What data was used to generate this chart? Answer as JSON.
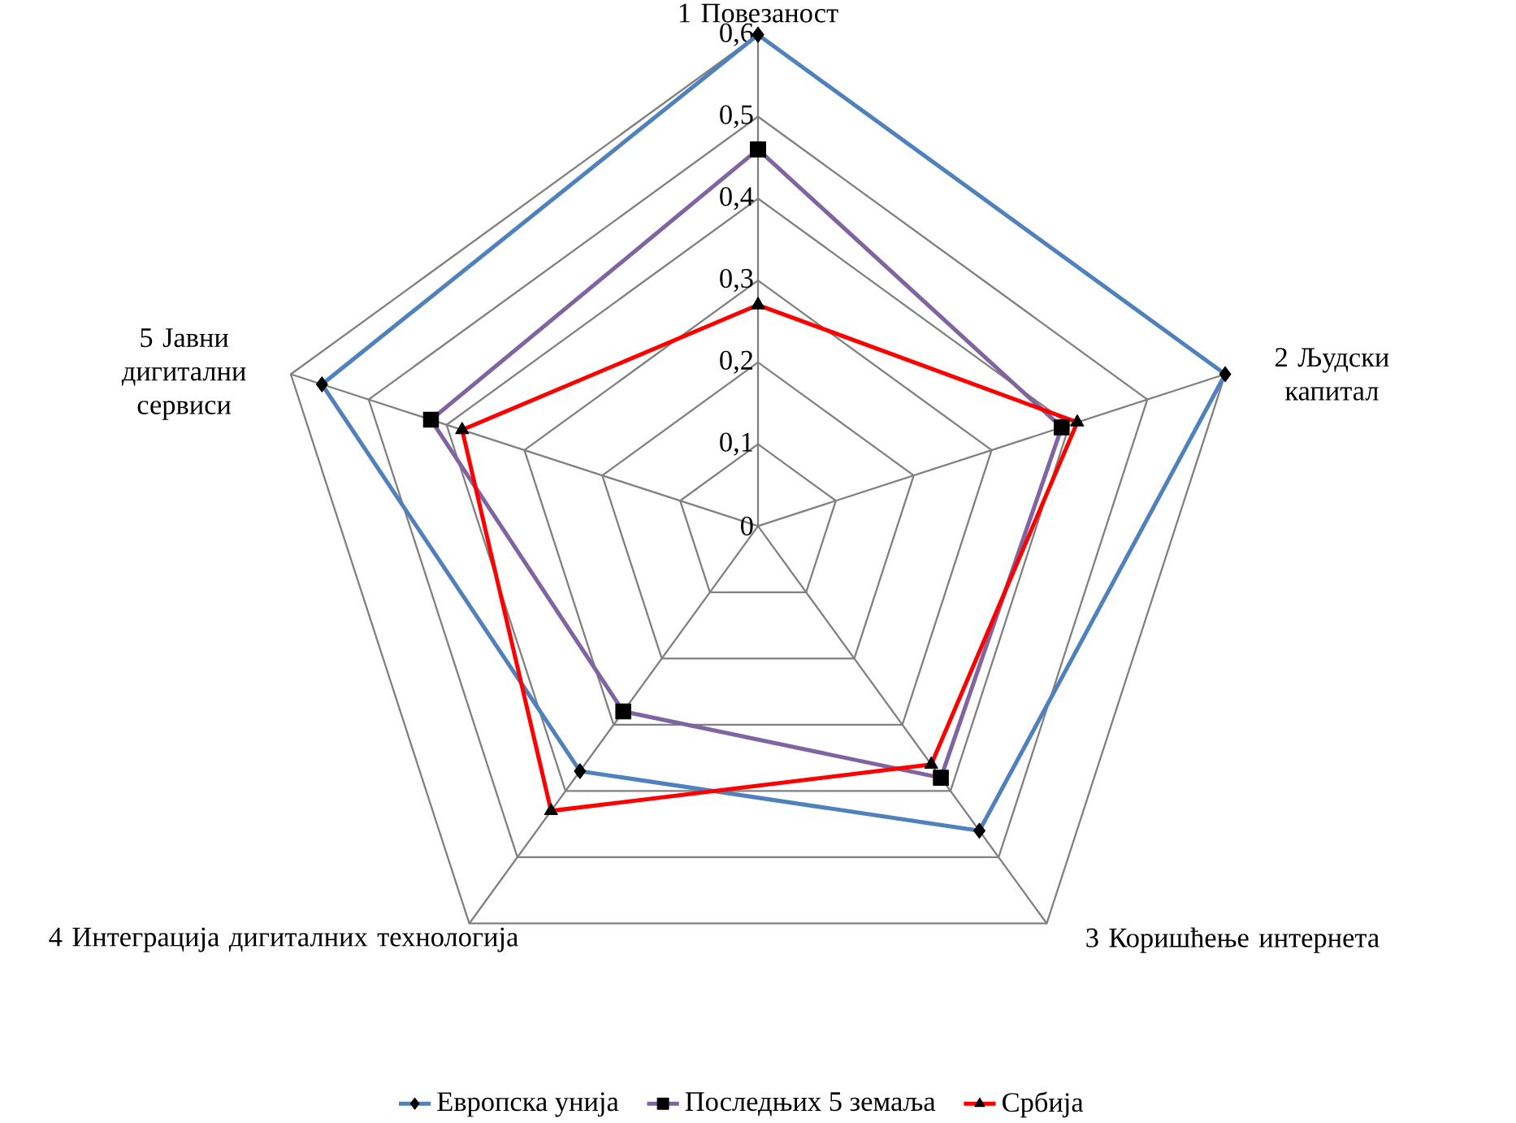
{
  "chart_data": {
    "type": "radar",
    "categories": [
      "1 Повезаност",
      "2 Људски капитал",
      "3 Коришћење интернета",
      "4 Интеграција дигиталних технологија",
      "5 Јавни дигитални сервиси"
    ],
    "series": [
      {
        "name": "Европска унија",
        "color": "#4f81bd",
        "marker": "diamond",
        "values": [
          0.6,
          0.6,
          0.46,
          0.37,
          0.56
        ]
      },
      {
        "name": "Последњих 5 земаља",
        "color": "#8064a2",
        "marker": "square",
        "values": [
          0.46,
          0.39,
          0.38,
          0.28,
          0.42
        ]
      },
      {
        "name": "Србија",
        "color": "#ff0000",
        "marker": "triangle",
        "values": [
          0.27,
          0.41,
          0.36,
          0.43,
          0.38
        ]
      }
    ],
    "ylim": [
      0,
      0.6
    ],
    "yticks": [
      0,
      {
        "value": 0.1,
        "label": "0,1"
      },
      {
        "value": 0.2,
        "label": "0,2"
      },
      {
        "value": 0.3,
        "label": "0,3"
      },
      {
        "value": 0.4,
        "label": "0,4"
      },
      {
        "value": 0.5,
        "label": "0,5"
      },
      {
        "value": 0.6,
        "label": "0,6"
      }
    ],
    "grid": true,
    "legend": "bottom"
  }
}
